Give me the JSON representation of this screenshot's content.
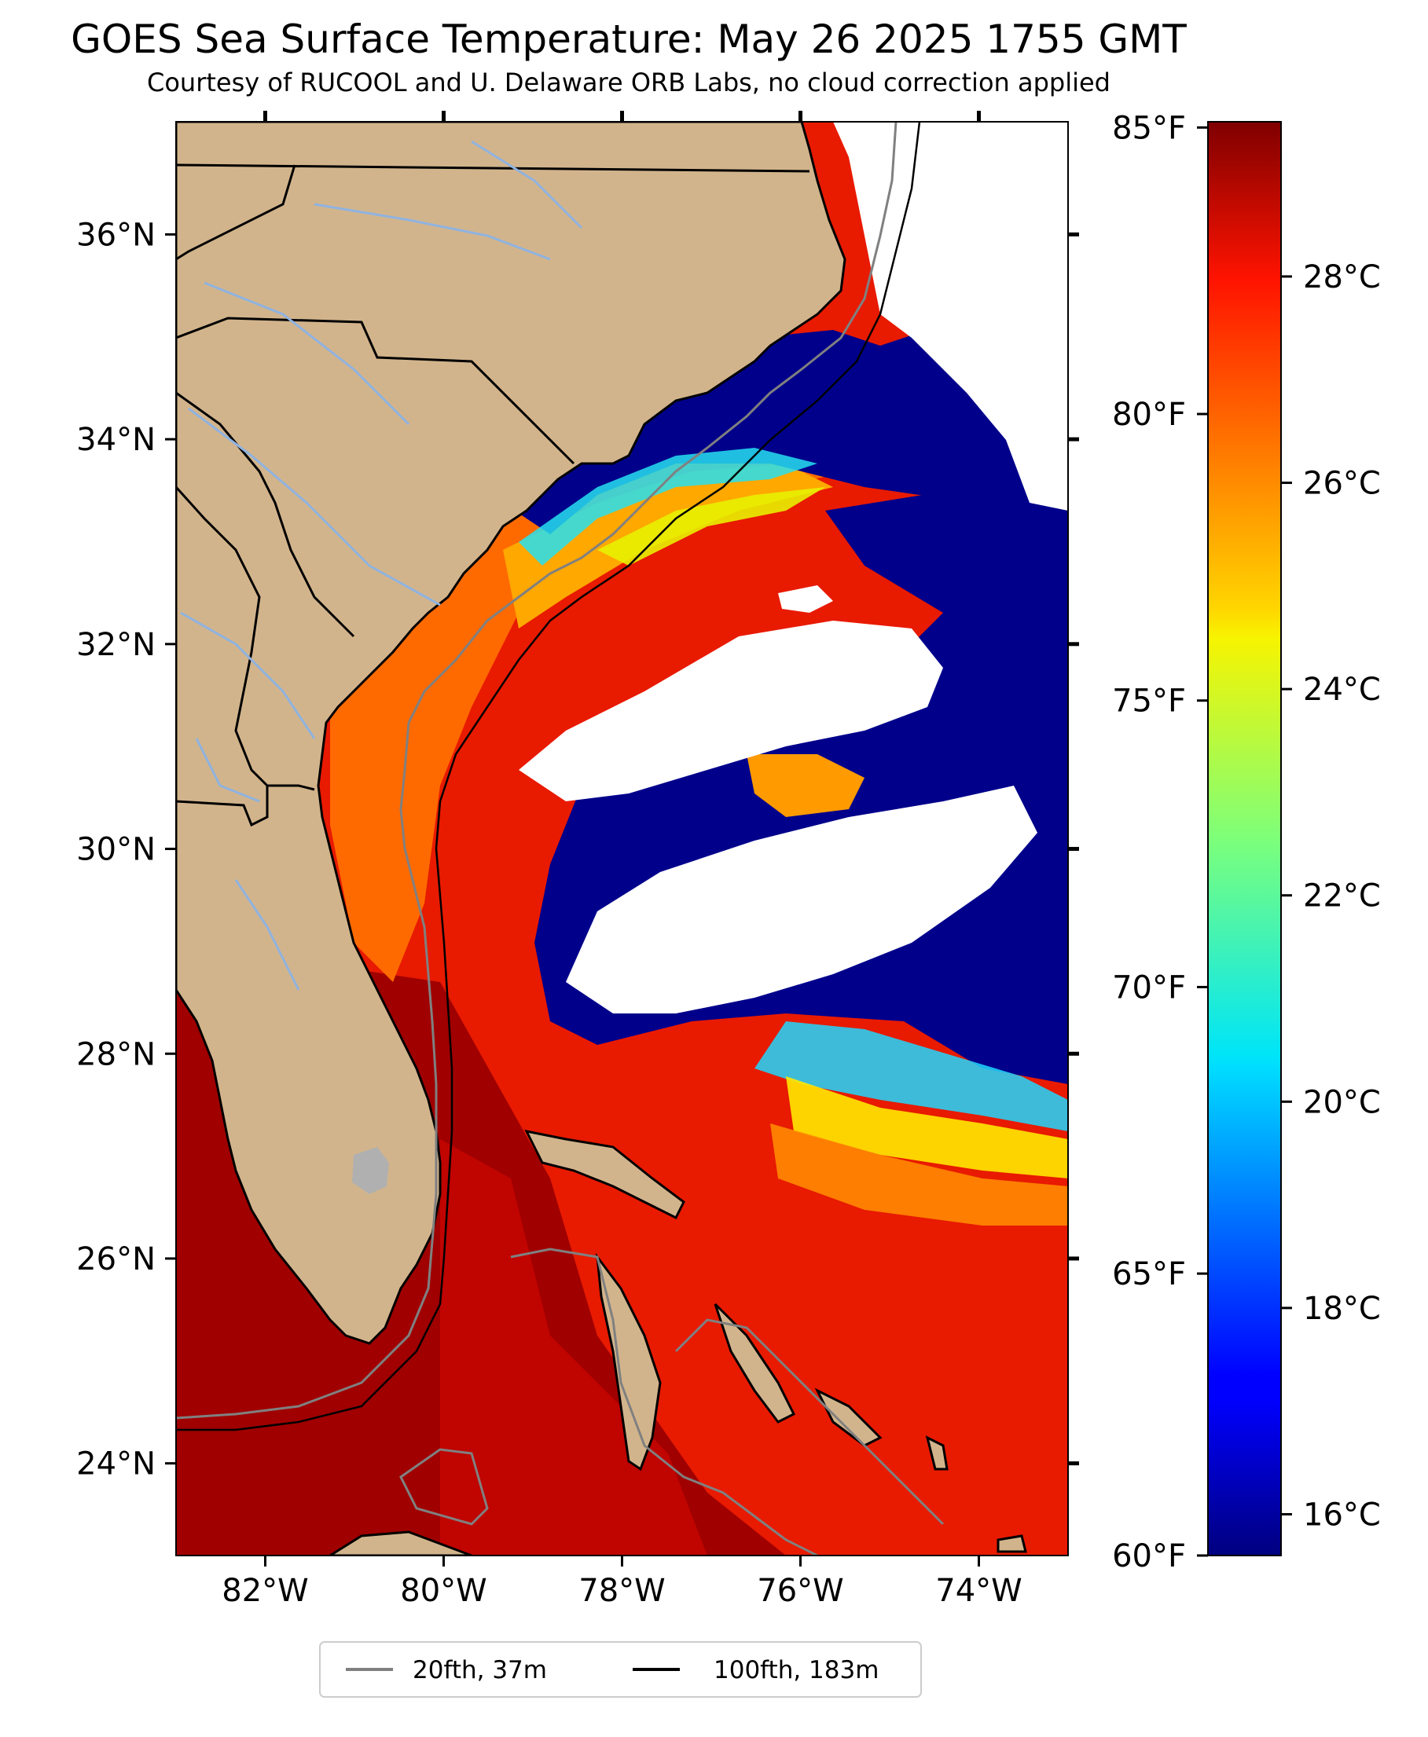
{
  "title": "GOES Sea Surface Temperature: May 26 2025 1755 GMT",
  "subtitle": "Courtesy of RUCOOL and U. Delaware ORB Labs, no cloud correction applied",
  "map": {
    "lon_range": [
      -83.0,
      -73.0
    ],
    "lat_range": [
      23.1,
      37.1
    ],
    "lon_ticks": [
      "82°W",
      "80°W",
      "78°W",
      "76°W",
      "74°W"
    ],
    "lat_ticks": [
      "36°N",
      "34°N",
      "32°N",
      "30°N",
      "28°N",
      "26°N",
      "24°N"
    ],
    "land_color": "#d2b48c",
    "cloud_color": "#ffffff",
    "no_data_color": "#b0b0b0"
  },
  "colorbar": {
    "colormap": "jet",
    "range_celsius": [
      15.6,
      29.5
    ],
    "celsius_ticks": [
      "16°C",
      "18°C",
      "20°C",
      "22°C",
      "24°C",
      "26°C",
      "28°C"
    ],
    "fahrenheit_ticks": [
      "60°F",
      "65°F",
      "70°F",
      "75°F",
      "80°F",
      "85°F"
    ]
  },
  "legend": {
    "items": [
      {
        "label": "20fth, 37m",
        "color": "#808080"
      },
      {
        "label": "100fth, 183m",
        "color": "#000000"
      }
    ]
  }
}
